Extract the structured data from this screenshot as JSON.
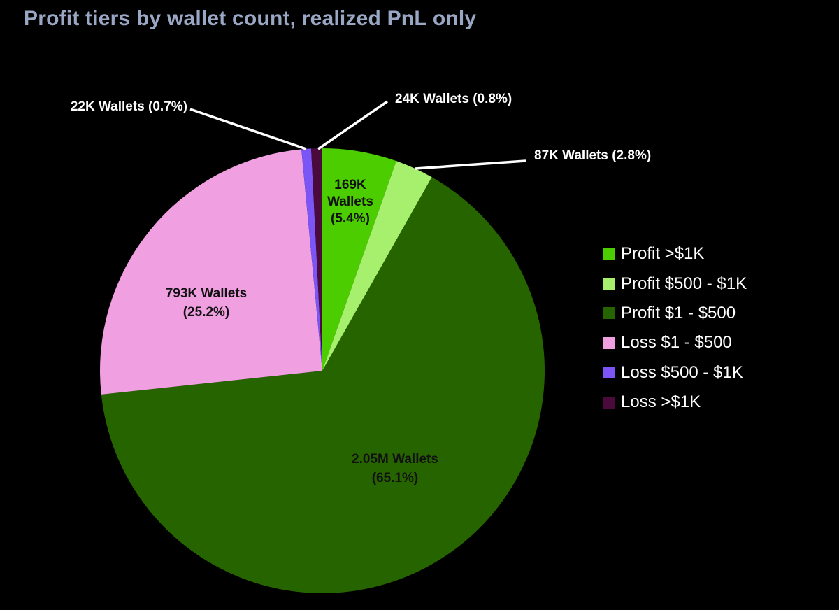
{
  "chart_data": {
    "type": "pie",
    "title": "Profit tiers by wallet count, realized PnL only",
    "legend_position": "right",
    "slices": [
      {
        "category": "Profit >$1K",
        "value": 5.4,
        "label_lines": [
          "169K",
          "Wallets",
          "(5.4%)"
        ],
        "label_placement": "inside",
        "color": "#4ccd00"
      },
      {
        "category": "Profit $500 - $1K",
        "value": 2.8,
        "label_lines": [
          "87K Wallets (2.8%)"
        ],
        "label_placement": "outside",
        "color": "#a6f06e"
      },
      {
        "category": "Profit $1 - $500",
        "value": 65.1,
        "label_lines": [
          "2.05M Wallets",
          "(65.1%)"
        ],
        "label_placement": "inside",
        "color": "#266400"
      },
      {
        "category": "Loss $1 - $500",
        "value": 25.2,
        "label_lines": [
          "793K Wallets",
          "(25.2%)"
        ],
        "label_placement": "inside",
        "color": "#f0a0e0"
      },
      {
        "category": "Loss $500 - $1K",
        "value": 0.7,
        "label_lines": [
          "22K Wallets (0.7%)"
        ],
        "label_placement": "outside",
        "color": "#7b55f5"
      },
      {
        "category": "Loss >$1K",
        "value": 0.8,
        "label_lines": [
          "24K Wallets (0.8%)"
        ],
        "label_placement": "outside",
        "color": "#4a0a3c"
      }
    ]
  }
}
